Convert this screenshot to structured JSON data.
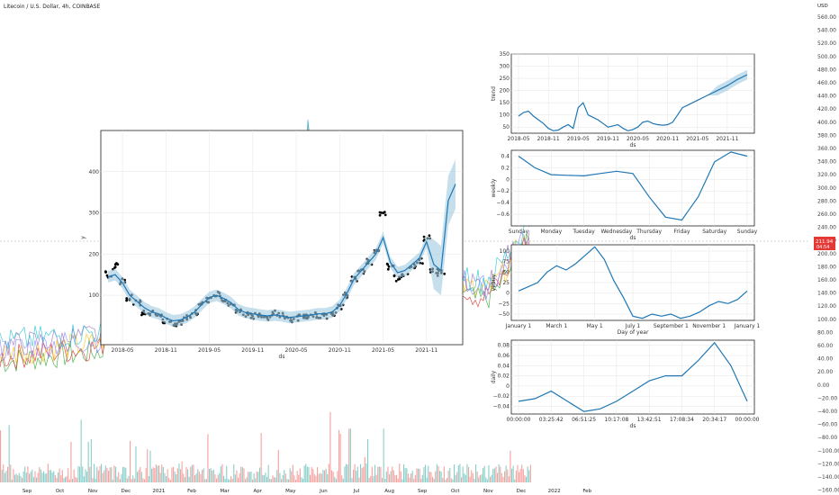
{
  "window": {
    "title": "Litecoin / U.S. Dollar, 4h, COINBASE",
    "currency_label": "USD",
    "price_tag": "211.94",
    "price_tag_time": "04:54"
  },
  "price_axis": {
    "values": [
      560,
      540,
      520,
      500,
      480,
      460,
      440,
      420,
      400,
      380,
      360,
      340,
      320,
      300,
      280,
      260,
      240,
      220,
      200,
      180,
      160,
      140,
      120,
      100,
      80,
      60,
      40,
      20,
      0,
      -20,
      -40,
      -60,
      -80,
      -100,
      -120,
      -140,
      -160
    ],
    "labels": [
      "560.00",
      "540.00",
      "520.00",
      "500.00",
      "480.00",
      "460.00",
      "440.00",
      "420.00",
      "400.00",
      "380.00",
      "360.00",
      "340.00",
      "320.00",
      "300.00",
      "280.00",
      "260.00",
      "240.00",
      "220.00",
      "200.00",
      "180.00",
      "160.00",
      "140.00",
      "120.00",
      "100.00",
      "80.00",
      "60.00",
      "40.00",
      "20.00",
      "0.00",
      "−20.00",
      "−40.00",
      "−60.00",
      "−80.00",
      "−100.00",
      "−120.00",
      "−140.00",
      "−160.00"
    ]
  },
  "time_axis": {
    "labels": [
      "Sep",
      "Oct",
      "Nov",
      "Dec",
      "2021",
      "Feb",
      "Mar",
      "Apr",
      "May",
      "Jun",
      "Jul",
      "Aug",
      "Sep",
      "Oct",
      "Nov",
      "Dec",
      "2022",
      "Feb"
    ]
  },
  "colors": {
    "forecast_line": "#1f77b4",
    "forecast_band": "#9ecae1",
    "observed_points": "#000000",
    "bull": "#26a69a",
    "bear": "#ef5350",
    "price_tag_bg": "#e53935"
  },
  "chart_data": [
    {
      "id": "forecast",
      "type": "line",
      "xlabel": "ds",
      "ylabel": "y",
      "x_ticks": [
        "2018-05",
        "2018-11",
        "2019-05",
        "2019-11",
        "2020-05",
        "2020-11",
        "2021-05",
        "2021-11"
      ],
      "y_ticks": [
        100,
        200,
        300,
        400
      ],
      "ylim": [
        -20,
        500
      ],
      "x": [
        "2018-03",
        "2018-04",
        "2018-05",
        "2018-06",
        "2018-07",
        "2018-08",
        "2018-09",
        "2018-10",
        "2018-11",
        "2018-12",
        "2019-01",
        "2019-02",
        "2019-03",
        "2019-04",
        "2019-05",
        "2019-06",
        "2019-07",
        "2019-08",
        "2019-09",
        "2019-10",
        "2019-11",
        "2019-12",
        "2020-01",
        "2020-02",
        "2020-03",
        "2020-04",
        "2020-05",
        "2020-06",
        "2020-07",
        "2020-08",
        "2020-09",
        "2020-10",
        "2020-11",
        "2020-12",
        "2021-01",
        "2021-02",
        "2021-03",
        "2021-04",
        "2021-05",
        "2021-06",
        "2021-07",
        "2021-08",
        "2021-09",
        "2021-10",
        "2021-11",
        "2021-12",
        "2022-01",
        "2022-02",
        "2022-03"
      ],
      "series": [
        {
          "role": "observed",
          "values": [
            150,
            170,
            135,
            95,
            80,
            60,
            55,
            50,
            40,
            30,
            32,
            45,
            58,
            75,
            90,
            105,
            90,
            80,
            60,
            55,
            50,
            48,
            45,
            55,
            50,
            42,
            45,
            45,
            47,
            52,
            50,
            55,
            70,
            100,
            140,
            160,
            180,
            210,
            300,
            170,
            140,
            150,
            170,
            185,
            240,
            160,
            155,
            null,
            null
          ]
        },
        {
          "role": "forecast",
          "values": [
            145,
            150,
            130,
            100,
            85,
            70,
            60,
            55,
            45,
            38,
            40,
            48,
            60,
            78,
            95,
            100,
            92,
            82,
            65,
            58,
            55,
            52,
            50,
            52,
            50,
            46,
            48,
            50,
            52,
            55,
            55,
            60,
            75,
            105,
            140,
            160,
            180,
            200,
            240,
            180,
            155,
            160,
            175,
            190,
            230,
            175,
            160,
            330,
            370
          ]
        }
      ]
    },
    {
      "id": "trend",
      "type": "line",
      "xlabel": "ds",
      "ylabel": "trend",
      "x_ticks": [
        "2018-05",
        "2018-11",
        "2019-05",
        "2019-11",
        "2020-05",
        "2020-11",
        "2021-05",
        "2021-11"
      ],
      "y_ticks": [
        50,
        100,
        150,
        200,
        250,
        300,
        350
      ],
      "ylim": [
        25,
        350
      ],
      "x": [
        "2018-05",
        "2018-06",
        "2018-07",
        "2018-08",
        "2018-09",
        "2018-10",
        "2018-11",
        "2018-12",
        "2019-01",
        "2019-02",
        "2019-03",
        "2019-04",
        "2019-05",
        "2019-06",
        "2019-07",
        "2019-08",
        "2019-09",
        "2019-10",
        "2019-11",
        "2019-12",
        "2020-01",
        "2020-02",
        "2020-03",
        "2020-04",
        "2020-05",
        "2020-06",
        "2020-07",
        "2020-08",
        "2020-09",
        "2020-10",
        "2020-11",
        "2020-12",
        "2021-01",
        "2021-02",
        "2021-03",
        "2021-05",
        "2021-07",
        "2021-09",
        "2021-11",
        "2022-01",
        "2022-03"
      ],
      "series": [
        {
          "role": "trend",
          "values": [
            95,
            110,
            115,
            95,
            80,
            65,
            45,
            35,
            38,
            50,
            60,
            45,
            130,
            150,
            100,
            90,
            80,
            65,
            50,
            55,
            60,
            45,
            35,
            40,
            50,
            70,
            75,
            65,
            60,
            58,
            60,
            70,
            100,
            130,
            140,
            160,
            180,
            200,
            220,
            245,
            265
          ]
        }
      ]
    },
    {
      "id": "weekly",
      "type": "line",
      "xlabel": "ds",
      "ylabel": "weekly",
      "categories": [
        "Sunday",
        "Monday",
        "Tuesday",
        "Wednesday",
        "Thursday",
        "Friday",
        "Saturday",
        "Sunday"
      ],
      "y_ticks": [
        -0.6,
        -0.4,
        -0.2,
        0.0,
        0.2,
        0.4
      ],
      "ylim": [
        -0.8,
        0.5
      ],
      "x": [
        0,
        0.5,
        1,
        1.5,
        2,
        2.5,
        3,
        3.5,
        4,
        4.5,
        5,
        5.5,
        6,
        6.5,
        7
      ],
      "series": [
        {
          "role": "weekly",
          "values": [
            0.4,
            0.2,
            0.08,
            0.07,
            0.06,
            0.1,
            0.14,
            0.1,
            -0.3,
            -0.65,
            -0.7,
            -0.3,
            0.3,
            0.47,
            0.4
          ]
        }
      ]
    },
    {
      "id": "yearly",
      "type": "line",
      "xlabel": "Day of year",
      "ylabel": "yearly",
      "categories": [
        "January 1",
        "March 1",
        "May 1",
        "July 1",
        "September 1",
        "November 1",
        "January 1"
      ],
      "y_ticks": [
        -50,
        -25,
        0,
        25,
        50,
        75,
        100
      ],
      "ylim": [
        -65,
        115
      ],
      "x": [
        0,
        0.25,
        0.5,
        0.75,
        1,
        1.25,
        1.5,
        1.75,
        2,
        2.25,
        2.5,
        2.75,
        3,
        3.25,
        3.5,
        3.75,
        4,
        4.25,
        4.5,
        4.75,
        5,
        5.25,
        5.5,
        5.75,
        6
      ],
      "series": [
        {
          "role": "yearly",
          "values": [
            5,
            15,
            25,
            50,
            65,
            55,
            70,
            90,
            110,
            80,
            30,
            -10,
            -55,
            -60,
            -50,
            -55,
            -50,
            -60,
            -55,
            -45,
            -30,
            -20,
            -25,
            -15,
            5
          ]
        }
      ]
    },
    {
      "id": "daily",
      "type": "line",
      "xlabel": "ds",
      "ylabel": "daily",
      "categories": [
        "00:00:00",
        "03:25:42",
        "06:51:25",
        "10:17:08",
        "13:42:51",
        "17:08:34",
        "20:34:17",
        "00:00:00"
      ],
      "y_ticks": [
        -0.04,
        -0.02,
        0.0,
        0.02,
        0.04,
        0.06,
        0.08
      ],
      "ylim": [
        -0.055,
        0.09
      ],
      "x": [
        0,
        0.5,
        1,
        1.5,
        2,
        2.5,
        3,
        3.5,
        4,
        4.5,
        5,
        5.5,
        6,
        6.5,
        7
      ],
      "series": [
        {
          "role": "daily",
          "values": [
            -0.03,
            -0.025,
            -0.01,
            -0.03,
            -0.05,
            -0.045,
            -0.03,
            -0.01,
            0.01,
            0.02,
            0.02,
            0.05,
            0.085,
            0.04,
            -0.03
          ]
        }
      ]
    }
  ]
}
